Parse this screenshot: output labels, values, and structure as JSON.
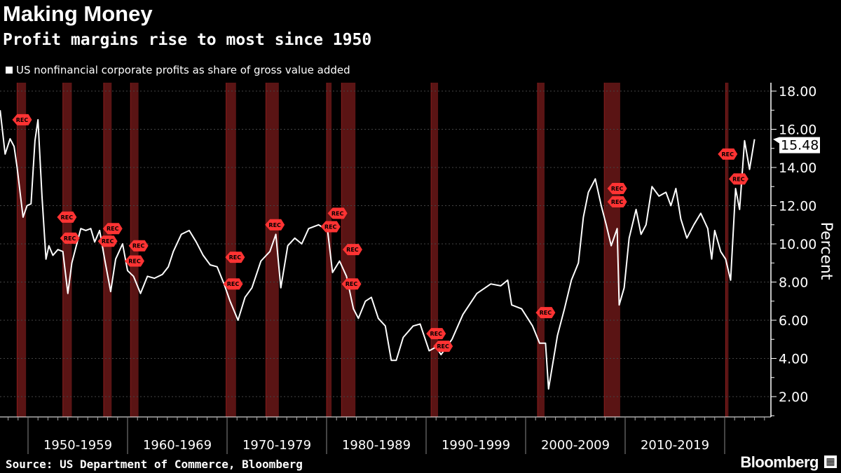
{
  "header": {
    "title": "Making Money",
    "subtitle": "Profit margins rise to most since 1950"
  },
  "footer": {
    "source": "Source: US Department of Commerce, Bloomberg",
    "brand": "Bloomberg"
  },
  "colors": {
    "line": "#ffffff",
    "recession": "#5a1414",
    "marker": "#ff3333",
    "background": "#000000"
  },
  "chart_data": {
    "type": "line",
    "title": "Making Money",
    "subtitle": "Profit margins rise to most since 1950",
    "legend": [
      {
        "label": "US nonfinancial corporate profits as share of gross value added",
        "color": "#ffffff"
      }
    ],
    "legend_position": "top-left",
    "ylabel": "Percent",
    "ylim": [
      1,
      18.5
    ],
    "xlim": [
      1947.2,
      2024.8
    ],
    "yticks": [
      "2.00",
      "4.00",
      "6.00",
      "8.00",
      "10.00",
      "12.00",
      "14.00",
      "16.00",
      "18.00"
    ],
    "ytick_values": [
      2,
      4,
      6,
      8,
      10,
      12,
      14,
      16,
      18
    ],
    "xtick_labels": [
      "1950-1959",
      "1960-1969",
      "1970-1979",
      "1980-1989",
      "1990-1999",
      "2000-2009",
      "2010-2019"
    ],
    "xtick_starts": [
      1950,
      1960,
      1970,
      1980,
      1990,
      2000,
      2010
    ],
    "last_value_label": "15.48",
    "last_value": 15.48,
    "grid": true,
    "series": [
      {
        "name": "US nonfinancial corporate profits as share of gross value added",
        "points": [
          [
            1947.2,
            17.0
          ],
          [
            1947.7,
            14.7
          ],
          [
            1948.2,
            15.5
          ],
          [
            1948.6,
            15.1
          ],
          [
            1948.9,
            14.0
          ],
          [
            1949.5,
            11.4
          ],
          [
            1949.9,
            12.0
          ],
          [
            1950.3,
            12.1
          ],
          [
            1950.7,
            15.4
          ],
          [
            1951.0,
            16.5
          ],
          [
            1951.4,
            12.5
          ],
          [
            1951.8,
            9.2
          ],
          [
            1952.1,
            9.9
          ],
          [
            1952.5,
            9.4
          ],
          [
            1953.0,
            9.7
          ],
          [
            1953.5,
            9.6
          ],
          [
            1954.0,
            7.4
          ],
          [
            1954.4,
            9.0
          ],
          [
            1954.9,
            10.0
          ],
          [
            1955.3,
            10.8
          ],
          [
            1955.8,
            10.7
          ],
          [
            1956.3,
            10.8
          ],
          [
            1956.7,
            10.1
          ],
          [
            1957.2,
            10.7
          ],
          [
            1957.7,
            9.2
          ],
          [
            1958.3,
            7.5
          ],
          [
            1958.8,
            9.2
          ],
          [
            1959.5,
            10.0
          ],
          [
            1960.0,
            8.6
          ],
          [
            1960.6,
            8.3
          ],
          [
            1961.3,
            7.4
          ],
          [
            1962.0,
            8.3
          ],
          [
            1962.7,
            8.2
          ],
          [
            1963.5,
            8.4
          ],
          [
            1964.1,
            8.8
          ],
          [
            1964.6,
            9.6
          ],
          [
            1965.4,
            10.5
          ],
          [
            1966.2,
            10.7
          ],
          [
            1966.9,
            10.1
          ],
          [
            1967.6,
            9.4
          ],
          [
            1968.3,
            8.9
          ],
          [
            1969.0,
            8.8
          ],
          [
            1969.7,
            7.9
          ],
          [
            1970.3,
            7.0
          ],
          [
            1971.1,
            6.0
          ],
          [
            1971.8,
            7.2
          ],
          [
            1972.5,
            7.7
          ],
          [
            1973.4,
            9.1
          ],
          [
            1974.3,
            9.6
          ],
          [
            1974.9,
            10.5
          ],
          [
            1975.4,
            7.7
          ],
          [
            1976.1,
            9.9
          ],
          [
            1976.8,
            10.3
          ],
          [
            1977.5,
            10.0
          ],
          [
            1978.2,
            10.8
          ],
          [
            1979.2,
            11.0
          ],
          [
            1980.1,
            10.7
          ],
          [
            1980.6,
            8.5
          ],
          [
            1981.3,
            9.1
          ],
          [
            1982.0,
            8.3
          ],
          [
            1982.7,
            6.6
          ],
          [
            1983.2,
            6.1
          ],
          [
            1983.9,
            7.0
          ],
          [
            1984.5,
            7.2
          ],
          [
            1985.2,
            6.1
          ],
          [
            1985.9,
            5.7
          ],
          [
            1986.5,
            3.9
          ],
          [
            1987.0,
            3.9
          ],
          [
            1987.7,
            5.1
          ],
          [
            1988.7,
            5.7
          ],
          [
            1989.4,
            5.8
          ],
          [
            1990.3,
            4.4
          ],
          [
            1991.0,
            4.6
          ],
          [
            1991.5,
            4.2
          ],
          [
            1992.6,
            5.0
          ],
          [
            1993.7,
            6.3
          ],
          [
            1995.1,
            7.4
          ],
          [
            1996.5,
            7.9
          ],
          [
            1997.5,
            7.8
          ],
          [
            1998.2,
            8.1
          ],
          [
            1998.6,
            6.8
          ],
          [
            1999.6,
            6.6
          ],
          [
            2000.7,
            5.7
          ],
          [
            2001.4,
            4.8
          ],
          [
            2002.0,
            4.8
          ],
          [
            2002.3,
            2.4
          ],
          [
            2003.2,
            5.2
          ],
          [
            2003.9,
            6.6
          ],
          [
            2004.6,
            8.1
          ],
          [
            2005.3,
            9.0
          ],
          [
            2005.8,
            11.4
          ],
          [
            2006.3,
            12.7
          ],
          [
            2007.0,
            13.4
          ],
          [
            2007.6,
            12.0
          ],
          [
            2008.1,
            11.0
          ],
          [
            2008.6,
            9.9
          ],
          [
            2009.2,
            10.8
          ],
          [
            2009.4,
            6.8
          ],
          [
            2009.9,
            7.7
          ],
          [
            2010.4,
            10.3
          ],
          [
            2011.1,
            11.8
          ],
          [
            2011.6,
            10.5
          ],
          [
            2012.1,
            11.0
          ],
          [
            2012.7,
            13.0
          ],
          [
            2013.4,
            12.5
          ],
          [
            2014.1,
            12.7
          ],
          [
            2014.6,
            12.0
          ],
          [
            2015.1,
            12.9
          ],
          [
            2015.6,
            11.3
          ],
          [
            2016.2,
            10.3
          ],
          [
            2016.9,
            11.0
          ],
          [
            2017.6,
            11.6
          ],
          [
            2018.3,
            10.8
          ],
          [
            2018.7,
            9.2
          ],
          [
            2019.0,
            10.7
          ],
          [
            2019.6,
            9.6
          ],
          [
            2020.1,
            9.2
          ],
          [
            2020.6,
            8.1
          ],
          [
            2021.1,
            12.9
          ],
          [
            2021.5,
            11.8
          ],
          [
            2022.0,
            15.4
          ],
          [
            2022.5,
            13.9
          ],
          [
            2023.0,
            15.48
          ]
        ]
      }
    ],
    "recessions": [
      [
        1948.9,
        1949.8
      ],
      [
        1953.5,
        1954.4
      ],
      [
        1957.6,
        1958.4
      ],
      [
        1960.3,
        1961.1
      ],
      [
        1969.9,
        1970.9
      ],
      [
        1973.9,
        1975.2
      ],
      [
        1980.0,
        1980.5
      ],
      [
        1981.5,
        1982.9
      ],
      [
        1990.5,
        1991.2
      ],
      [
        2001.2,
        2001.9
      ],
      [
        2007.9,
        2009.5
      ],
      [
        2020.1,
        2020.3
      ]
    ],
    "annotations": [
      {
        "label": "REC",
        "x": 1949.4,
        "y": 16.5
      },
      {
        "label": "REC",
        "x": 1953.9,
        "y": 11.4
      },
      {
        "label": "REC",
        "x": 1954.2,
        "y": 10.3
      },
      {
        "label": "REC",
        "x": 1958.5,
        "y": 10.8
      },
      {
        "label": "REC",
        "x": 1958.0,
        "y": 10.4
      },
      {
        "label": "REC",
        "x": 1961.1,
        "y": 9.9
      },
      {
        "label": "REC",
        "x": 1960.7,
        "y": 9.1
      },
      {
        "label": "REC",
        "x": 1970.8,
        "y": 9.3
      },
      {
        "label": "REC",
        "x": 1970.6,
        "y": 7.9
      },
      {
        "label": "REC",
        "x": 1974.8,
        "y": 11.0
      },
      {
        "label": "REC",
        "x": 1980.4,
        "y": 10.9
      },
      {
        "label": "REC",
        "x": 1981.1,
        "y": 11.6
      },
      {
        "label": "REC",
        "x": 1982.6,
        "y": 9.7
      },
      {
        "label": "REC",
        "x": 1982.5,
        "y": 7.9
      },
      {
        "label": "REC",
        "x": 1991.0,
        "y": 5.3
      },
      {
        "label": "REC",
        "x": 1991.7,
        "y": 5.5
      },
      {
        "label": "REC",
        "x": 2002.0,
        "y": 6.4
      },
      {
        "label": "REC",
        "x": 2009.2,
        "y": 12.9
      },
      {
        "label": "REC",
        "x": 2009.2,
        "y": 12.2
      },
      {
        "label": "REC",
        "x": 2020.3,
        "y": 14.7
      },
      {
        "label": "REC",
        "x": 2021.4,
        "y": 13.4
      }
    ]
  }
}
